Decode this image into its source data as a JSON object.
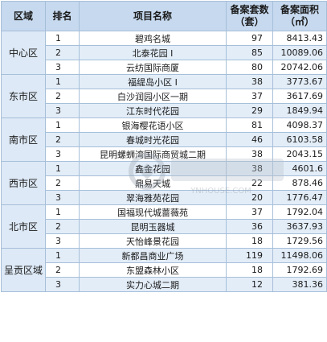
{
  "headers": {
    "region": "区域",
    "rank": "排名",
    "name": "项目名称",
    "count_l1": "备案套数",
    "count_l2": "（套）",
    "area_l1": "备案面积",
    "area_l2": "（㎡）"
  },
  "regions": [
    {
      "name": "中心区",
      "rows": [
        {
          "rank": "1",
          "project": "碧鸡名城",
          "count": "97",
          "area": "8413.43"
        },
        {
          "rank": "2",
          "project": "北泰花园 I",
          "count": "85",
          "area": "10089.06"
        },
        {
          "rank": "3",
          "project": "云纺国际商厦",
          "count": "80",
          "area": "20742.06"
        }
      ]
    },
    {
      "name": "东市区",
      "rows": [
        {
          "rank": "1",
          "project": "福缇岛小区 I",
          "count": "38",
          "area": "3773.67"
        },
        {
          "rank": "2",
          "project": "白沙润园小区一期",
          "count": "37",
          "area": "3617.69"
        },
        {
          "rank": "3",
          "project": "江东时代花园",
          "count": "29",
          "area": "1849.94"
        }
      ]
    },
    {
      "name": "南市区",
      "rows": [
        {
          "rank": "1",
          "project": "银海樱花语小区",
          "count": "81",
          "area": "4098.37"
        },
        {
          "rank": "2",
          "project": "春城时光花园",
          "count": "46",
          "area": "6103.58"
        },
        {
          "rank": "3",
          "project": "昆明螺蛳湾国际商贸城二期",
          "count": "38",
          "area": "2043.15"
        }
      ]
    },
    {
      "name": "西市区",
      "rows": [
        {
          "rank": "1",
          "project": "鑫金花园",
          "count": "38",
          "area": "4601.6"
        },
        {
          "rank": "2",
          "project": "鼎易天城",
          "count": "22",
          "area": "878.46"
        },
        {
          "rank": "3",
          "project": "翠海雅苑花园",
          "count": "20",
          "area": "1776.47"
        }
      ]
    },
    {
      "name": "北市区",
      "rows": [
        {
          "rank": "1",
          "project": "国福现代城蔷薇苑",
          "count": "37",
          "area": "1792.04"
        },
        {
          "rank": "2",
          "project": "昆明玉器城",
          "count": "36",
          "area": "3637.93"
        },
        {
          "rank": "3",
          "project": "天怡峰景花园",
          "count": "18",
          "area": "1729.56"
        }
      ]
    },
    {
      "name": "呈贡区域",
      "rows": [
        {
          "rank": "1",
          "project": "新都昌商业广场",
          "count": "119",
          "area": "11498.06"
        },
        {
          "rank": "2",
          "project": "东盟森林小区",
          "count": "18",
          "area": "1792.69"
        },
        {
          "rank": "3",
          "project": "实力心城二期",
          "count": "12",
          "area": "381.36"
        }
      ]
    }
  ],
  "watermark": {
    "text": "YNHOUSE.COM"
  },
  "colors": {
    "header_bg": "#c6d9ee",
    "stripe": "#e3edf8",
    "border": "#a6bfd9"
  }
}
